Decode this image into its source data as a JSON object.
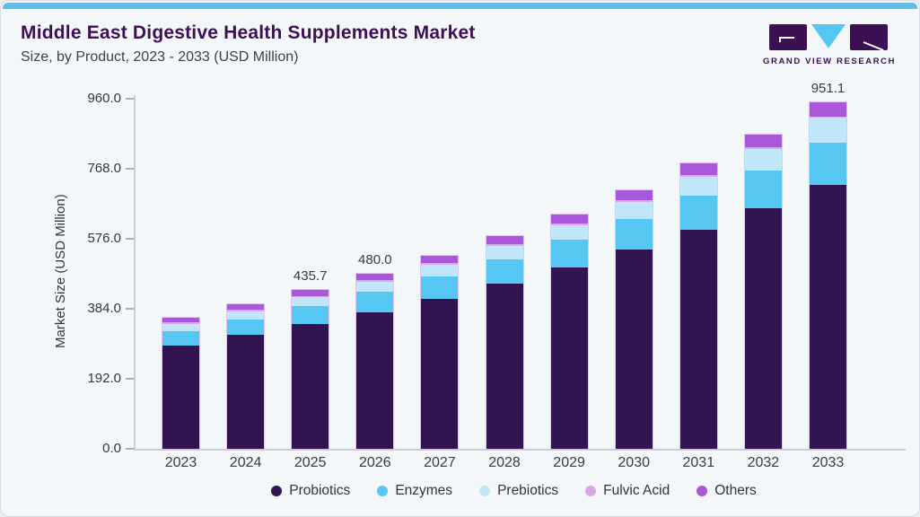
{
  "header": {
    "title": "Middle East Digestive Health Supplements Market",
    "subtitle": "Size, by Product, 2023 - 2033 (USD Million)"
  },
  "logo": {
    "text": "GRAND VIEW RESEARCH"
  },
  "theme": {
    "top_bar_color": "#5ABFE9",
    "title_color": "#3C1053",
    "background_color": "#F3F7FA",
    "axis_line_color": "#C9CFD8"
  },
  "chart_data": {
    "type": "bar",
    "stacked": true,
    "title": "Middle East Digestive Health Supplements Market Size, by Product, 2023 - 2033 (USD Million)",
    "xlabel": "",
    "ylabel": "Market Size (USD Million)",
    "ylim": [
      0,
      960
    ],
    "y_ticks": [
      960.0,
      768.0,
      576.0,
      384.0,
      192.0,
      0.0
    ],
    "grid": false,
    "legend_position": "bottom",
    "categories": [
      "2023",
      "2024",
      "2025",
      "2026",
      "2027",
      "2028",
      "2029",
      "2030",
      "2031",
      "2032",
      "2033"
    ],
    "series": [
      {
        "name": "Probiotics",
        "color": "#321450",
        "values": [
          283.4,
          311.3,
          341.8,
          375.2,
          412.1,
          452.7,
          497.3,
          546.3,
          600.1,
          659.3,
          724.7
        ]
      },
      {
        "name": "Enzymes",
        "color": "#56C7F2",
        "values": [
          39.5,
          43.9,
          48.9,
          54.4,
          60.5,
          67.4,
          75.0,
          83.5,
          92.9,
          103.4,
          115.1
        ]
      },
      {
        "name": "Prebiotics",
        "color": "#C2E6F9",
        "values": [
          18.7,
          21.3,
          24.3,
          27.7,
          31.5,
          35.9,
          40.8,
          46.3,
          52.5,
          59.6,
          67.5
        ]
      },
      {
        "name": "Fulvic Acid",
        "color": "#D8A9E8",
        "values": [
          4.3,
          4.4,
          4.5,
          4.6,
          4.7,
          4.7,
          4.6,
          4.5,
          4.4,
          4.1,
          3.8
        ]
      },
      {
        "name": "Others",
        "color": "#A957DB",
        "values": [
          12.8,
          14.5,
          16.2,
          18.1,
          20.4,
          22.7,
          25.5,
          28.5,
          31.9,
          35.6,
          40.0
        ]
      }
    ],
    "totals": [
      358.7,
      395.4,
      435.7,
      480.0,
      529.2,
      583.4,
      643.2,
      709.1,
      781.8,
      862.0,
      951.1
    ],
    "bar_labels": {
      "2025": "435.7",
      "2026": "480.0",
      "2033": "951.1"
    }
  }
}
